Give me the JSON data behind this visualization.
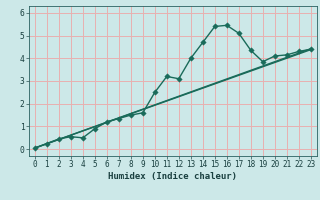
{
  "title": "",
  "xlabel": "Humidex (Indice chaleur)",
  "ylabel": "",
  "xlim": [
    -0.5,
    23.5
  ],
  "ylim": [
    -0.3,
    6.3
  ],
  "x_ticks": [
    0,
    1,
    2,
    3,
    4,
    5,
    6,
    7,
    8,
    9,
    10,
    11,
    12,
    13,
    14,
    15,
    16,
    17,
    18,
    19,
    20,
    21,
    22,
    23
  ],
  "y_ticks": [
    0,
    1,
    2,
    3,
    4,
    5,
    6
  ],
  "background_color": "#cce8e8",
  "grid_color": "#e8b0b0",
  "line_color": "#1a6b5a",
  "data_x": [
    0,
    1,
    2,
    3,
    4,
    5,
    6,
    7,
    8,
    9,
    10,
    11,
    12,
    13,
    14,
    15,
    16,
    17,
    18,
    19,
    20,
    21,
    22,
    23
  ],
  "data_y": [
    0.05,
    0.25,
    0.45,
    0.55,
    0.5,
    0.9,
    1.2,
    1.35,
    1.5,
    1.6,
    2.5,
    3.2,
    3.1,
    4.0,
    4.7,
    5.4,
    5.45,
    5.1,
    4.35,
    3.85,
    4.1,
    4.15,
    4.3,
    4.4
  ],
  "trend1_x": [
    0,
    23
  ],
  "trend1_y": [
    0.05,
    4.38
  ],
  "trend2_x": [
    0,
    23
  ],
  "trend2_y": [
    0.05,
    4.42
  ],
  "marker_size": 2.8,
  "line_width": 1.0,
  "xlabel_fontsize": 6.5,
  "tick_fontsize": 5.5
}
